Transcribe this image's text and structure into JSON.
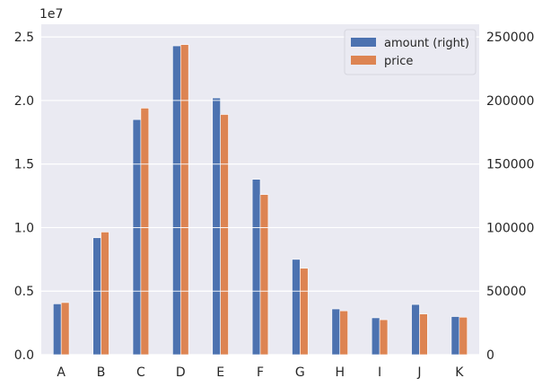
{
  "chart_data": {
    "type": "bar",
    "categories": [
      "A",
      "B",
      "C",
      "D",
      "E",
      "F",
      "G",
      "H",
      "I",
      "J",
      "K"
    ],
    "series": [
      {
        "name": "amount (right)",
        "axis": "right",
        "values": [
          40000,
          92000,
          185000,
          243000,
          202000,
          138000,
          75000,
          36000,
          29000,
          39500,
          30000
        ]
      },
      {
        "name": "price",
        "axis": "left",
        "values": [
          4100000,
          9650000,
          19400000,
          24400000,
          18900000,
          12600000,
          6800000,
          3450000,
          2750000,
          3200000,
          2950000
        ]
      }
    ],
    "left_axis": {
      "offset_label": "1e7",
      "ylim": [
        0,
        26000000
      ],
      "ticks": [
        0,
        5000000,
        10000000,
        15000000,
        20000000,
        25000000
      ],
      "tick_labels": [
        "0.0",
        "0.5",
        "1.0",
        "1.5",
        "2.0",
        "2.5"
      ]
    },
    "right_axis": {
      "ylim": [
        0,
        260000
      ],
      "ticks": [
        0,
        50000,
        100000,
        150000,
        200000,
        250000
      ],
      "tick_labels": [
        "0",
        "50000",
        "100000",
        "150000",
        "200000",
        "250000"
      ]
    },
    "grid": true,
    "legend_position": "top-right",
    "colors": {
      "amount": "#4c72b0",
      "price": "#dd8452",
      "background": "#eaeaf2",
      "grid": "#ffffff"
    }
  }
}
